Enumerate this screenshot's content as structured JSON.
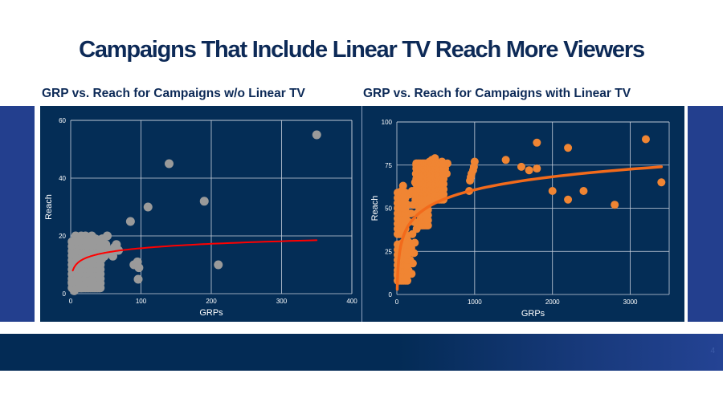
{
  "slide": {
    "title": "Campaigns That Include Linear TV Reach More Viewers",
    "page_number": "4"
  },
  "colors": {
    "title_text": "#0d2a57",
    "panel_bg": "#042d56",
    "side_bar": "#233f8e",
    "left_points": "#9a9a9a",
    "left_trend": "#ff0000",
    "right_points": "#f08533",
    "right_trend": "#f26a1b",
    "grid": "#c8d0dc"
  },
  "chart_data": [
    {
      "id": "without-linear-tv",
      "type": "scatter",
      "title": "GRP vs. Reach for Campaigns w/o Linear TV",
      "xlabel": "GRPs",
      "ylabel": "Reach",
      "xlim": [
        0,
        400
      ],
      "ylim": [
        0,
        60
      ],
      "xticks": [
        0,
        100,
        200,
        300,
        400
      ],
      "yticks": [
        0,
        20,
        40,
        60
      ],
      "grid": true,
      "legend": "none",
      "trendline": {
        "type": "logarithmic",
        "x_range": [
          3,
          350
        ],
        "y_at_start": 8,
        "y_at_end": 18.5
      },
      "cluster": {
        "description": "dense cluster",
        "x_range": [
          0,
          70
        ],
        "y_range": [
          1,
          20
        ]
      },
      "points": [
        [
          2,
          4
        ],
        [
          3,
          2
        ],
        [
          4,
          6
        ],
        [
          5,
          1
        ],
        [
          5,
          9
        ],
        [
          6,
          12
        ],
        [
          6,
          15
        ],
        [
          7,
          18
        ],
        [
          7,
          20
        ],
        [
          8,
          3
        ],
        [
          8,
          7
        ],
        [
          9,
          10
        ],
        [
          10,
          14
        ],
        [
          10,
          17
        ],
        [
          11,
          19
        ],
        [
          12,
          5
        ],
        [
          12,
          8
        ],
        [
          13,
          11
        ],
        [
          14,
          16
        ],
        [
          15,
          20
        ],
        [
          15,
          2
        ],
        [
          16,
          6
        ],
        [
          17,
          13
        ],
        [
          18,
          18
        ],
        [
          19,
          9
        ],
        [
          20,
          4
        ],
        [
          20,
          15
        ],
        [
          21,
          20
        ],
        [
          22,
          11
        ],
        [
          23,
          7
        ],
        [
          24,
          17
        ],
        [
          25,
          3
        ],
        [
          25,
          13
        ],
        [
          26,
          19
        ],
        [
          27,
          9
        ],
        [
          28,
          5
        ],
        [
          29,
          15
        ],
        [
          30,
          20
        ],
        [
          30,
          11
        ],
        [
          31,
          7
        ],
        [
          32,
          17
        ],
        [
          33,
          13
        ],
        [
          34,
          4
        ],
        [
          35,
          19
        ],
        [
          35,
          9
        ],
        [
          36,
          15
        ],
        [
          37,
          6
        ],
        [
          38,
          12
        ],
        [
          39,
          18
        ],
        [
          40,
          10
        ],
        [
          40,
          14
        ],
        [
          41,
          5
        ],
        [
          42,
          16
        ],
        [
          44,
          12
        ],
        [
          45,
          19
        ],
        [
          46,
          15
        ],
        [
          48,
          13
        ],
        [
          50,
          17
        ],
        [
          52,
          20
        ],
        [
          55,
          15
        ],
        [
          58,
          14
        ],
        [
          60,
          13
        ],
        [
          62,
          16
        ],
        [
          65,
          17
        ],
        [
          68,
          15
        ],
        [
          85,
          25
        ],
        [
          110,
          30
        ],
        [
          140,
          45
        ],
        [
          190,
          32
        ],
        [
          210,
          10
        ],
        [
          350,
          55
        ],
        [
          90,
          10
        ],
        [
          95,
          11
        ],
        [
          96,
          5
        ],
        [
          97,
          9
        ]
      ]
    },
    {
      "id": "with-linear-tv",
      "type": "scatter",
      "title": "GRP vs. Reach for Campaigns with Linear TV",
      "xlabel": "GRPs",
      "ylabel": "Reach",
      "xlim": [
        0,
        3500
      ],
      "ylim": [
        0,
        100
      ],
      "xticks": [
        0,
        1000,
        2000,
        3000
      ],
      "yticks": [
        0,
        25,
        50,
        75,
        100
      ],
      "grid": true,
      "legend": "none",
      "trendline": {
        "type": "logarithmic",
        "x_range": [
          5,
          3400
        ],
        "y_at_start": 3,
        "y_at_end": 74
      },
      "points": [
        [
          10,
          12
        ],
        [
          15,
          20
        ],
        [
          20,
          28
        ],
        [
          25,
          45
        ],
        [
          30,
          52
        ],
        [
          30,
          58
        ],
        [
          35,
          38
        ],
        [
          40,
          15
        ],
        [
          45,
          25
        ],
        [
          50,
          55
        ],
        [
          55,
          48
        ],
        [
          60,
          60
        ],
        [
          65,
          40
        ],
        [
          70,
          18
        ],
        [
          75,
          30
        ],
        [
          80,
          63
        ],
        [
          85,
          50
        ],
        [
          90,
          22
        ],
        [
          95,
          12
        ],
        [
          100,
          35
        ],
        [
          100,
          57
        ],
        [
          110,
          27
        ],
        [
          115,
          45
        ],
        [
          120,
          17
        ],
        [
          125,
          10
        ],
        [
          130,
          32
        ],
        [
          135,
          52
        ],
        [
          140,
          24
        ],
        [
          150,
          14
        ],
        [
          155,
          42
        ],
        [
          160,
          30
        ],
        [
          165,
          58
        ],
        [
          170,
          20
        ],
        [
          180,
          47
        ],
        [
          185,
          27
        ],
        [
          190,
          12
        ],
        [
          195,
          60
        ],
        [
          200,
          35
        ],
        [
          205,
          18
        ],
        [
          210,
          52
        ],
        [
          220,
          24
        ],
        [
          225,
          42
        ],
        [
          230,
          30
        ],
        [
          235,
          65
        ],
        [
          240,
          55
        ],
        [
          245,
          70
        ],
        [
          250,
          75
        ],
        [
          255,
          38
        ],
        [
          260,
          47
        ],
        [
          270,
          60
        ],
        [
          280,
          68
        ],
        [
          290,
          50
        ],
        [
          300,
          72
        ],
        [
          310,
          57
        ],
        [
          320,
          64
        ],
        [
          330,
          45
        ],
        [
          340,
          70
        ],
        [
          350,
          62
        ],
        [
          360,
          74
        ],
        [
          370,
          52
        ],
        [
          380,
          67
        ],
        [
          390,
          58
        ],
        [
          400,
          73
        ],
        [
          410,
          65
        ],
        [
          420,
          77
        ],
        [
          430,
          60
        ],
        [
          440,
          70
        ],
        [
          450,
          78
        ],
        [
          460,
          63
        ],
        [
          470,
          74
        ],
        [
          480,
          68
        ],
        [
          490,
          79
        ],
        [
          500,
          66
        ],
        [
          510,
          72
        ],
        [
          520,
          76
        ],
        [
          530,
          61
        ],
        [
          540,
          70
        ],
        [
          550,
          75
        ],
        [
          560,
          64
        ],
        [
          570,
          71
        ],
        [
          580,
          77
        ],
        [
          600,
          69
        ],
        [
          620,
          73
        ],
        [
          640,
          70
        ],
        [
          650,
          76
        ],
        [
          930,
          60
        ],
        [
          940,
          66
        ],
        [
          950,
          68
        ],
        [
          960,
          70
        ],
        [
          980,
          72
        ],
        [
          990,
          74
        ],
        [
          1000,
          77
        ],
        [
          1400,
          78
        ],
        [
          1600,
          74
        ],
        [
          1700,
          72
        ],
        [
          1800,
          73
        ],
        [
          1800,
          88
        ],
        [
          2000,
          60
        ],
        [
          2200,
          55
        ],
        [
          2200,
          85
        ],
        [
          2400,
          60
        ],
        [
          2800,
          52
        ],
        [
          3200,
          90
        ],
        [
          3400,
          65
        ]
      ]
    }
  ]
}
